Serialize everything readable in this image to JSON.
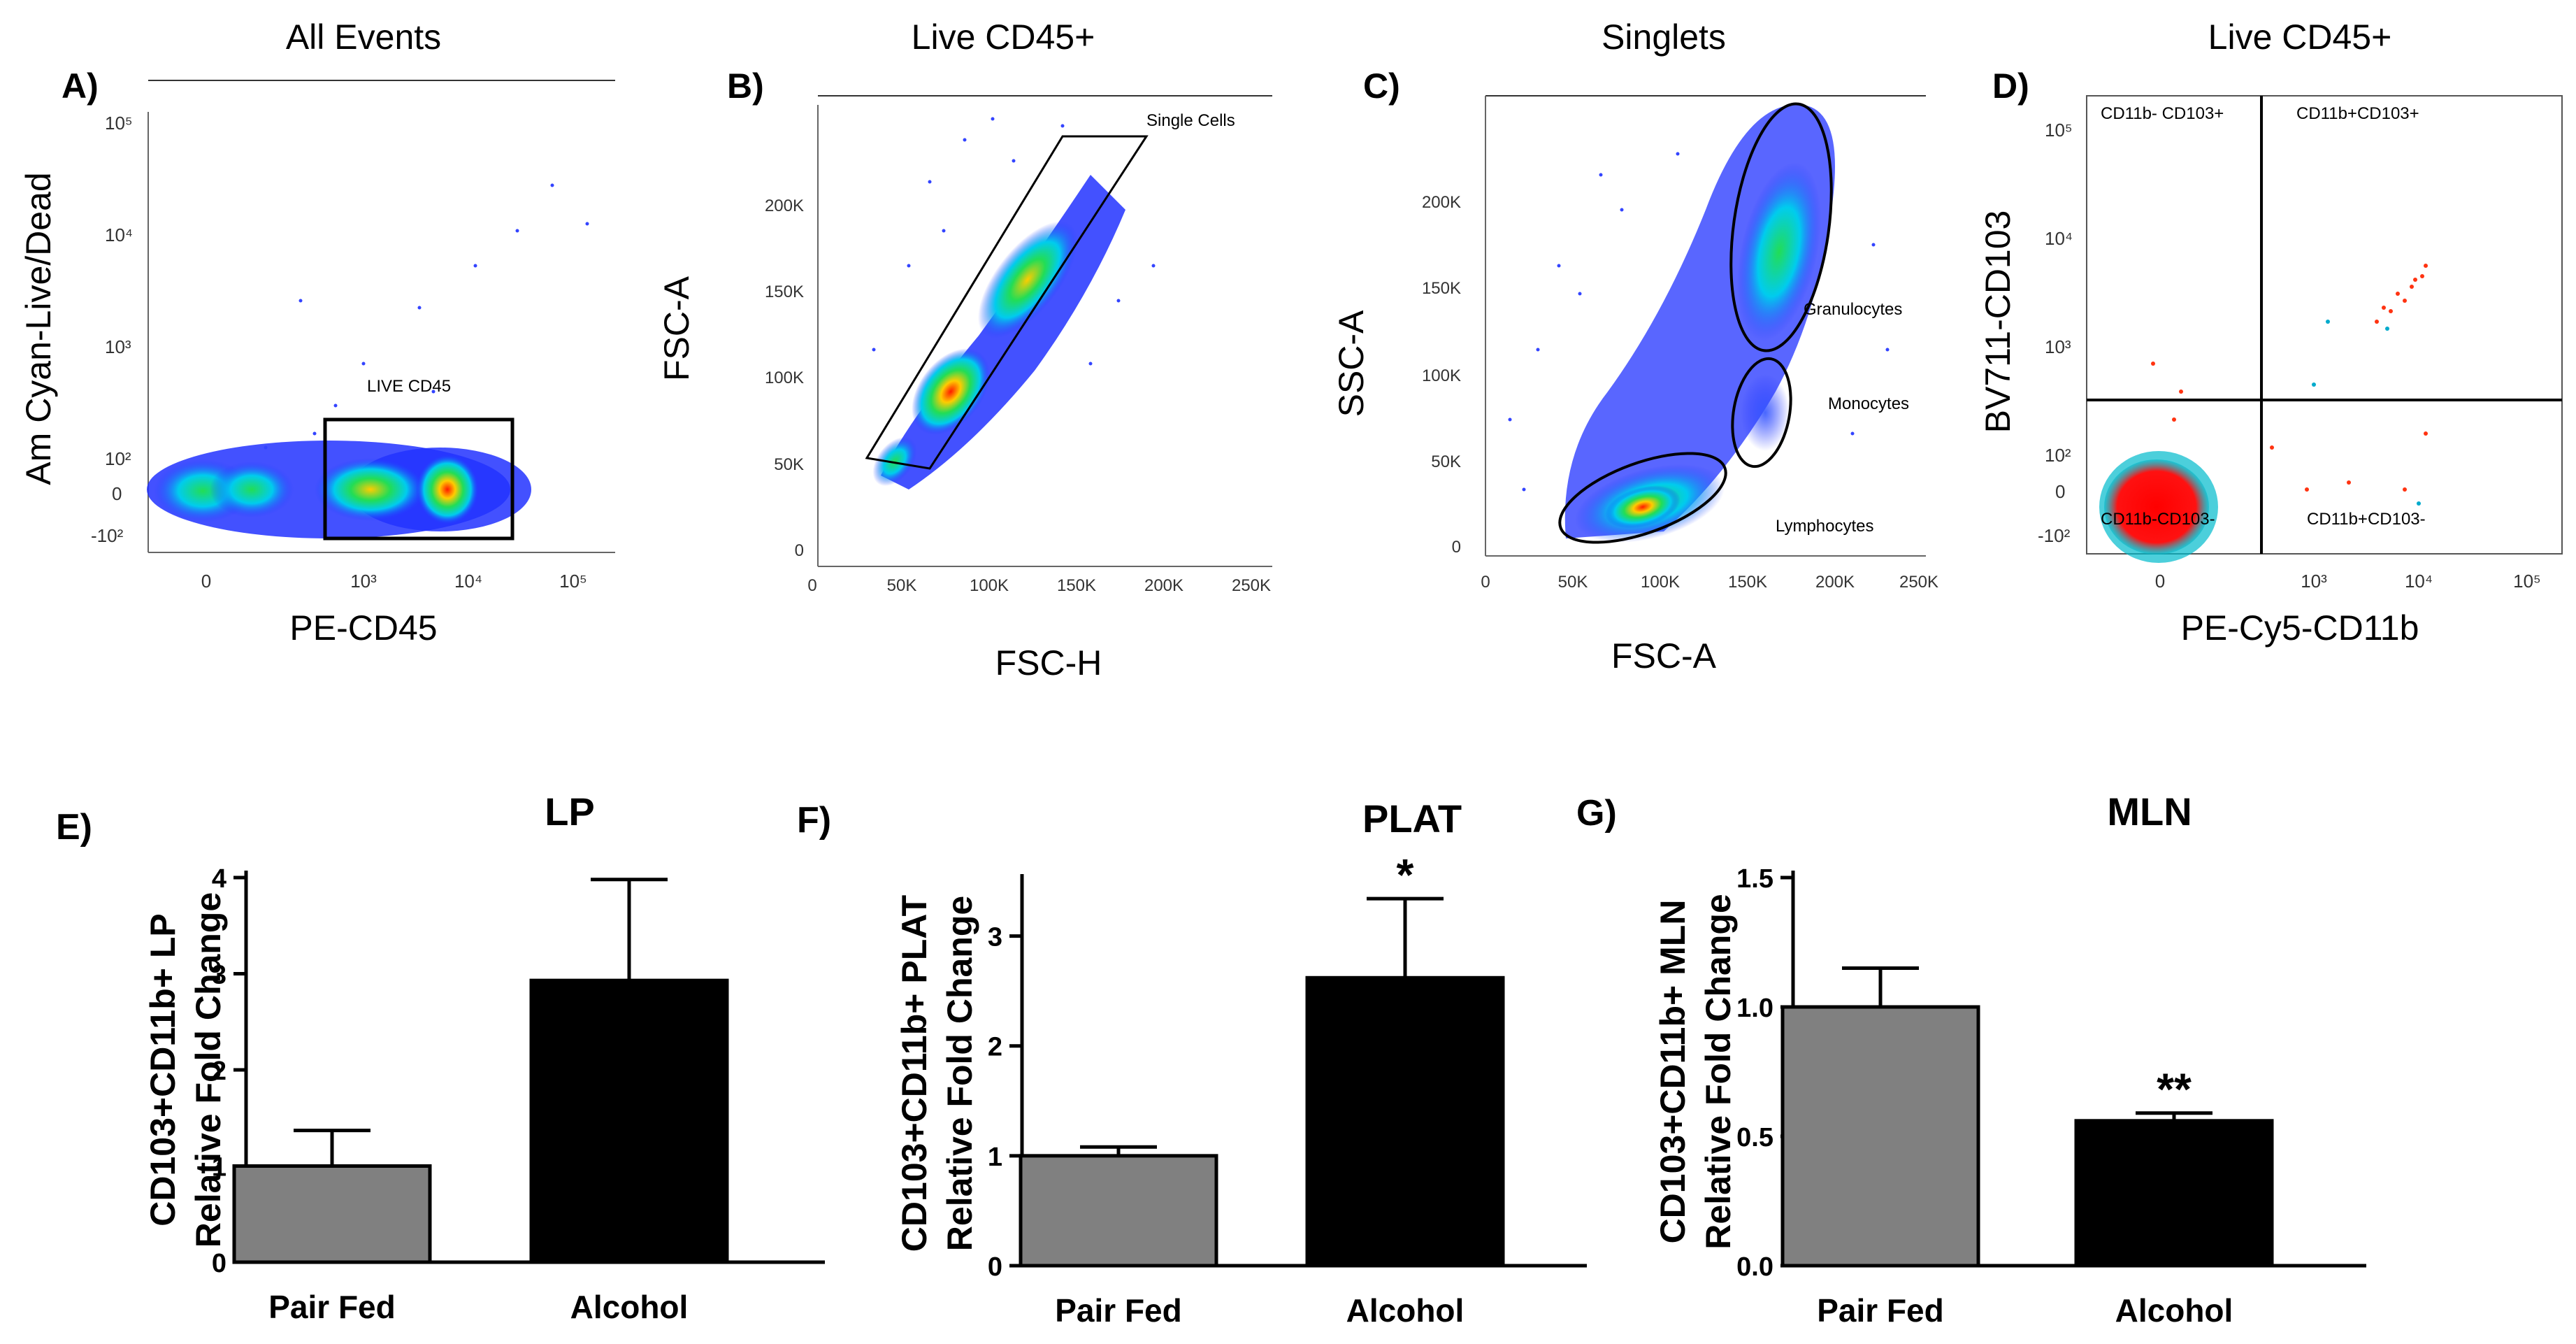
{
  "figure": {
    "top_panels": [
      {
        "id": "A",
        "panel_label": "A)",
        "title": "All Events",
        "xlabel": "PE-CD45",
        "ylabel": "Am Cyan-Live/Dead",
        "x_ticks": [
          "0",
          "10³",
          "10⁴",
          "10⁵"
        ],
        "y_ticks": [
          "10⁵",
          "10⁴",
          "10³",
          "10²",
          "0",
          "-10²"
        ],
        "gates": [
          "LIVE CD45"
        ]
      },
      {
        "id": "B",
        "panel_label": "B)",
        "title": "Live CD45+",
        "xlabel": "FSC-H",
        "ylabel": "FSC-A",
        "x_ticks": [
          "0",
          "50K",
          "100K",
          "150K",
          "200K",
          "250K"
        ],
        "y_ticks": [
          "0",
          "50K",
          "100K",
          "150K",
          "200K"
        ],
        "gates": [
          "Single Cells"
        ]
      },
      {
        "id": "C",
        "panel_label": "C)",
        "title": "Singlets",
        "xlabel": "FSC-A",
        "ylabel": "SSC-A",
        "x_ticks": [
          "0",
          "50K",
          "100K",
          "150K",
          "200K",
          "250K"
        ],
        "y_ticks": [
          "0",
          "50K",
          "100K",
          "150K",
          "200K"
        ],
        "gates": [
          "Granulocytes",
          "Monocytes",
          "Lymphocytes"
        ]
      },
      {
        "id": "D",
        "panel_label": "D)",
        "title": "Live CD45+",
        "xlabel": "PE-Cy5-CD11b",
        "ylabel": "BV711-CD103",
        "x_ticks": [
          "0",
          "10³",
          "10⁴",
          "10⁵"
        ],
        "y_ticks": [
          "10⁵",
          "10⁴",
          "10³",
          "10²",
          "0",
          "-10²"
        ],
        "gates": [
          "CD11b- CD103+",
          "CD11b+CD103+",
          "CD11b-CD103-",
          "CD11b+CD103-"
        ]
      }
    ]
  },
  "chart_data": [
    {
      "type": "bar",
      "panel_label": "E)",
      "title": "LP",
      "ylabel_line1": "CD103+CD11b+ LP",
      "ylabel_line2": "Relative Fold Change",
      "categories": [
        "Pair Fed",
        "Alcohol"
      ],
      "values": [
        1.0,
        2.93
      ],
      "errors": [
        0.37,
        1.05
      ],
      "bar_colors": [
        "#808080",
        "#000000"
      ],
      "significance": [
        "",
        ""
      ],
      "ylim": [
        0,
        4
      ],
      "yticks": [
        0,
        1,
        2,
        3,
        4
      ],
      "ytick_labels": [
        "0",
        "1",
        "2",
        "3",
        "4"
      ]
    },
    {
      "type": "bar",
      "panel_label": "F)",
      "title": "PLAT",
      "ylabel_line1": "CD103+CD11b+ PLAT",
      "ylabel_line2": "Relative Fold Change",
      "categories": [
        "Pair Fed",
        "Alcohol"
      ],
      "values": [
        1.0,
        2.62
      ],
      "errors": [
        0.08,
        0.72
      ],
      "bar_colors": [
        "#808080",
        "#000000"
      ],
      "significance": [
        "",
        "*"
      ],
      "ylim": [
        0,
        3.5
      ],
      "yticks": [
        0,
        1,
        2,
        3
      ],
      "ytick_labels": [
        "0",
        "1",
        "2",
        "3"
      ]
    },
    {
      "type": "bar",
      "panel_label": "G)",
      "title": "MLN",
      "ylabel_line1": "CD103+CD11b+ MLN",
      "ylabel_line2": "Relative Fold Change",
      "categories": [
        "Pair Fed",
        "Alcohol"
      ],
      "values": [
        1.0,
        0.56
      ],
      "errors": [
        0.15,
        0.03
      ],
      "bar_colors": [
        "#808080",
        "#000000"
      ],
      "significance": [
        "",
        "**"
      ],
      "ylim": [
        0,
        1.5
      ],
      "yticks": [
        0,
        0.5,
        1.0,
        1.5
      ],
      "ytick_labels": [
        "0.0",
        "0.5",
        "1.0",
        "1.5"
      ]
    }
  ]
}
